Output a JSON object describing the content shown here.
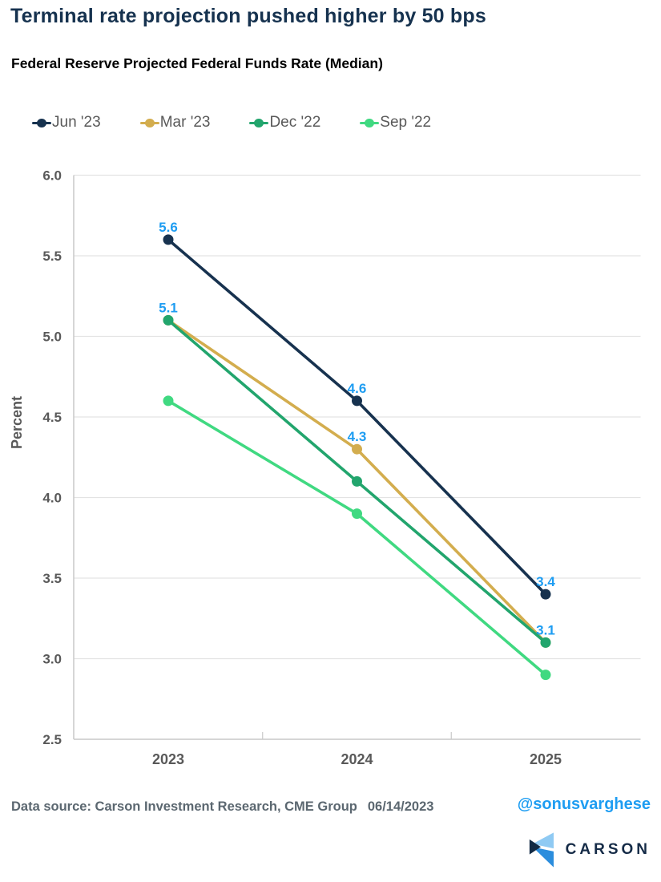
{
  "header": {
    "title": "Terminal rate projection pushed higher by 50 bps"
  },
  "chart_data": {
    "type": "line",
    "title": "Federal Reserve Projected Federal Funds Rate (Median)",
    "categories": [
      "2023",
      "2024",
      "2025"
    ],
    "series": [
      {
        "name": "Jun '23",
        "color": "#17324f",
        "values": [
          5.6,
          4.6,
          3.4
        ],
        "labeled_points": [
          true,
          true,
          true
        ]
      },
      {
        "name": "Mar '23",
        "color": "#d3ad4e",
        "values": [
          5.1,
          4.3,
          3.1
        ],
        "labeled_points": [
          false,
          true,
          false
        ]
      },
      {
        "name": "Dec '22",
        "color": "#22a56d",
        "values": [
          5.1,
          4.1,
          3.1
        ],
        "labeled_points": [
          true,
          false,
          true
        ]
      },
      {
        "name": "Sep '22",
        "color": "#40d981",
        "values": [
          4.6,
          3.9,
          2.9
        ],
        "labeled_points": [
          false,
          false,
          false
        ]
      }
    ],
    "xlabel": "",
    "ylabel": "Percent",
    "ylim": [
      2.5,
      6.0
    ],
    "ytick_step": 0.5,
    "grid": true,
    "legend_position": "top",
    "data_label_color": "#1e9df2",
    "grid_color": "#e3e3e3",
    "axis_color": "#c9c9c9",
    "tick_label_color": "#595959"
  },
  "footer": {
    "source": "Data source: Carson Investment Research, CME Group",
    "date": "06/14/2023",
    "handle": "@sonusvarghese",
    "brand": "CARSON",
    "brand_colors": {
      "light": "#8fcaf3",
      "mid": "#2b8ddd",
      "dark": "#122a44"
    }
  }
}
